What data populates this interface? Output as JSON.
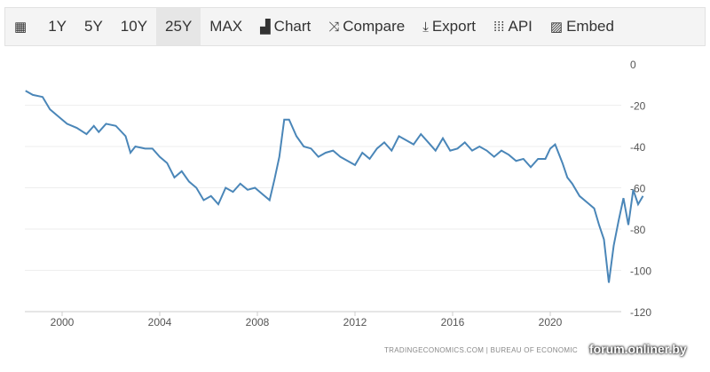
{
  "toolbar": {
    "items": [
      {
        "label": "",
        "icon": "calendar-icon"
      },
      {
        "label": "1Y"
      },
      {
        "label": "5Y"
      },
      {
        "label": "10Y"
      },
      {
        "label": "25Y",
        "active": true
      },
      {
        "label": "MAX"
      },
      {
        "label": "Chart",
        "icon": "bar-chart-icon"
      },
      {
        "label": "Compare",
        "icon": "shuffle-icon"
      },
      {
        "label": "Export",
        "icon": "download-icon"
      },
      {
        "label": "API",
        "icon": "grid-icon"
      },
      {
        "label": "Embed",
        "icon": "image-icon"
      }
    ]
  },
  "credit": "TRADINGECONOMICS.COM  |  BUREAU OF ECONOMIC",
  "watermark": "forum.onliner.by",
  "chart_data": {
    "type": "line",
    "color": "#4a86b8",
    "xlim": [
      1998.5,
      2024
    ],
    "ylim": [
      -120,
      0
    ],
    "x_ticks": [
      "2000",
      "2004",
      "2008",
      "2012",
      "2016",
      "2020"
    ],
    "y_ticks": [
      "0",
      "-20",
      "-40",
      "-60",
      "-80",
      "-100",
      "-120"
    ],
    "x": [
      1998.5,
      1998.8,
      1999.2,
      1999.5,
      1999.8,
      2000.2,
      2000.6,
      2001.0,
      2001.3,
      2001.5,
      2001.8,
      2002.2,
      2002.6,
      2002.8,
      2003.0,
      2003.4,
      2003.7,
      2004.0,
      2004.3,
      2004.6,
      2004.9,
      2005.2,
      2005.5,
      2005.8,
      2006.1,
      2006.4,
      2006.7,
      2007.0,
      2007.3,
      2007.6,
      2007.9,
      2008.2,
      2008.5,
      2008.7,
      2008.9,
      2009.1,
      2009.3,
      2009.6,
      2009.9,
      2010.2,
      2010.5,
      2010.8,
      2011.1,
      2011.4,
      2011.7,
      2012.0,
      2012.3,
      2012.6,
      2012.9,
      2013.2,
      2013.5,
      2013.8,
      2014.1,
      2014.4,
      2014.7,
      2015.0,
      2015.3,
      2015.6,
      2015.9,
      2016.2,
      2016.5,
      2016.8,
      2017.1,
      2017.4,
      2017.7,
      2018.0,
      2018.3,
      2018.6,
      2018.9,
      2019.2,
      2019.5,
      2019.8,
      2020.0,
      2020.2,
      2020.5,
      2020.7,
      2020.9,
      2021.2,
      2021.5,
      2021.8,
      2022.0,
      2022.2,
      2022.4,
      2022.6,
      2022.8,
      2023.0,
      2023.2,
      2023.4,
      2023.6,
      2023.8
    ],
    "y": [
      -13,
      -15,
      -16,
      -22,
      -25,
      -29,
      -31,
      -34,
      -30,
      -33,
      -29,
      -30,
      -35,
      -43,
      -40,
      -41,
      -41,
      -45,
      -48,
      -55,
      -52,
      -57,
      -60,
      -66,
      -64,
      -68,
      -60,
      -62,
      -58,
      -61,
      -60,
      -63,
      -66,
      -56,
      -45,
      -27,
      -27,
      -35,
      -40,
      -41,
      -45,
      -43,
      -42,
      -45,
      -47,
      -49,
      -43,
      -46,
      -41,
      -38,
      -42,
      -35,
      -37,
      -39,
      -34,
      -38,
      -42,
      -36,
      -42,
      -41,
      -38,
      -42,
      -40,
      -42,
      -45,
      -42,
      -44,
      -47,
      -46,
      -50,
      -46,
      -46,
      -41,
      -39,
      -48,
      -55,
      -58,
      -64,
      -67,
      -70,
      -78,
      -85,
      -106,
      -88,
      -76,
      -65,
      -78,
      -61,
      -68,
      -64
    ]
  }
}
